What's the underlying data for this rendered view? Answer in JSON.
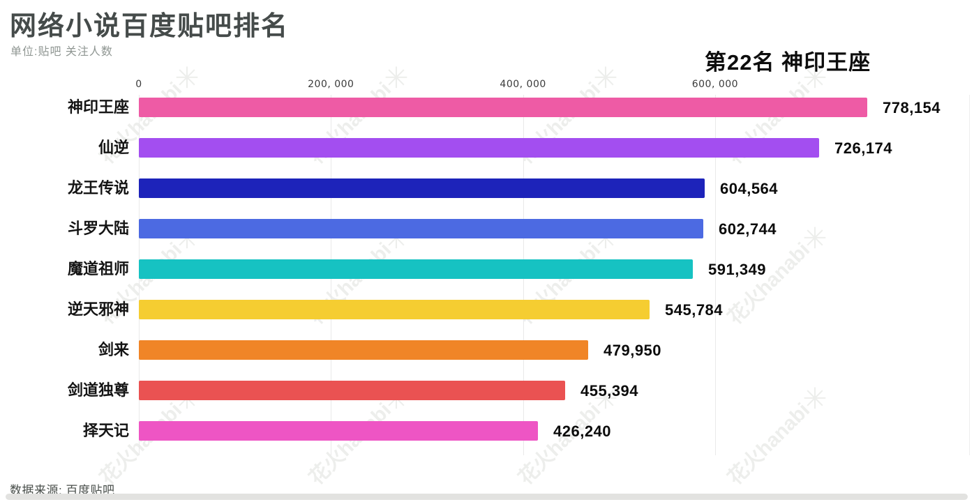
{
  "header": {
    "title": "网络小说百度贴吧排名",
    "subtitle": "单位:贴吧 关注人数",
    "rank_label": "第22名 神印王座"
  },
  "footer": {
    "source": "数据来源: 百度贴吧"
  },
  "watermark": {
    "text": "花火hanabi",
    "spark": "✳"
  },
  "chart_data": {
    "type": "bar",
    "orientation": "horizontal",
    "title": "网络小说百度贴吧排名",
    "unit_note": "单位:贴吧 关注人数",
    "frame_label": "第22名 神印王座",
    "categories": [
      "神印王座",
      "仙逆",
      "龙王传说",
      "斗罗大陆",
      "魔道祖师",
      "逆天邪神",
      "剑来",
      "剑道独尊",
      "择天记"
    ],
    "values": [
      778154,
      726174,
      604564,
      602744,
      591349,
      545784,
      479950,
      455394,
      426240
    ],
    "value_labels": [
      "778,154",
      "726,174",
      "604,564",
      "602,744",
      "591,349",
      "545,784",
      "479,950",
      "455,394",
      "426,240"
    ],
    "colors": [
      "#ee5ba5",
      "#a34ef0",
      "#1d23ba",
      "#4c6ae2",
      "#16c2c2",
      "#f5cd31",
      "#f08527",
      "#ea5252",
      "#ee55c4"
    ],
    "x_ticks": [
      "0",
      "200, 000",
      "400, 000",
      "600, 000"
    ],
    "x_tick_values": [
      0,
      200000,
      400000,
      600000
    ],
    "xlim": [
      0,
      870000
    ],
    "grid": true,
    "legend": false,
    "source": "数据来源: 百度贴吧"
  }
}
